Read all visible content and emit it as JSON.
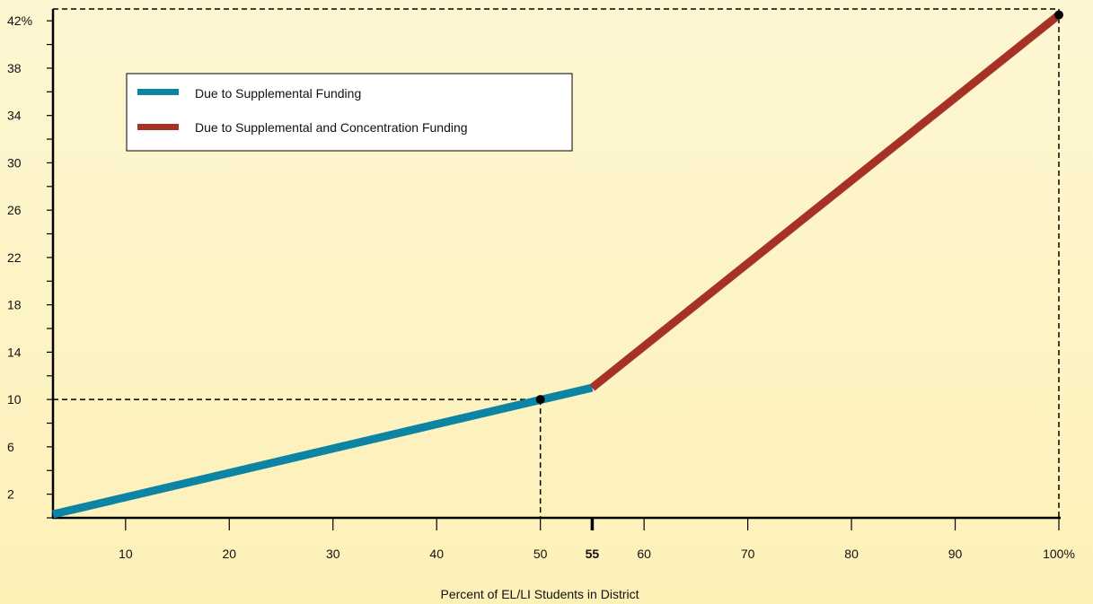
{
  "chart_data": {
    "type": "line",
    "title": "",
    "xlabel": "Percent of EL/LI Students in District",
    "ylabel": "",
    "xlim": [
      3,
      100
    ],
    "ylim": [
      0,
      43
    ],
    "x_ticks": [
      {
        "value": 10,
        "label": "10",
        "bold": false
      },
      {
        "value": 20,
        "label": "20",
        "bold": false
      },
      {
        "value": 30,
        "label": "30",
        "bold": false
      },
      {
        "value": 40,
        "label": "40",
        "bold": false
      },
      {
        "value": 50,
        "label": "50",
        "bold": false
      },
      {
        "value": 55,
        "label": "55",
        "bold": true
      },
      {
        "value": 60,
        "label": "60",
        "bold": false
      },
      {
        "value": 70,
        "label": "70",
        "bold": false
      },
      {
        "value": 80,
        "label": "80",
        "bold": false
      },
      {
        "value": 90,
        "label": "90",
        "bold": false
      },
      {
        "value": 100,
        "label": "100%",
        "bold": false
      }
    ],
    "y_ticks": [
      {
        "value": 2,
        "label": "2"
      },
      {
        "value": 6,
        "label": "6"
      },
      {
        "value": 10,
        "label": "10"
      },
      {
        "value": 14,
        "label": "14"
      },
      {
        "value": 18,
        "label": "18"
      },
      {
        "value": 22,
        "label": "22"
      },
      {
        "value": 26,
        "label": "26"
      },
      {
        "value": 30,
        "label": "30"
      },
      {
        "value": 34,
        "label": "34"
      },
      {
        "value": 38,
        "label": "38"
      },
      {
        "value": 42,
        "label": "42%"
      }
    ],
    "y_minor_ticks": [
      0,
      4,
      8,
      12,
      16,
      20,
      24,
      28,
      32,
      36,
      40
    ],
    "series": [
      {
        "name": "Due to Supplemental Funding",
        "color": "#0e84a5",
        "points": [
          [
            3,
            0.3
          ],
          [
            55,
            11.0
          ]
        ]
      },
      {
        "name": "Due to Supplemental and Concentration Funding",
        "color": "#a63226",
        "points": [
          [
            55,
            11.0
          ],
          [
            100,
            42.5
          ]
        ]
      }
    ],
    "highlight_points": [
      {
        "x": 50,
        "y": 10
      },
      {
        "x": 100,
        "y": 42.5
      }
    ],
    "legend_position": "top-left",
    "grid": false,
    "background_colors": [
      "#fdf6d2",
      "#fdf1b8"
    ]
  }
}
